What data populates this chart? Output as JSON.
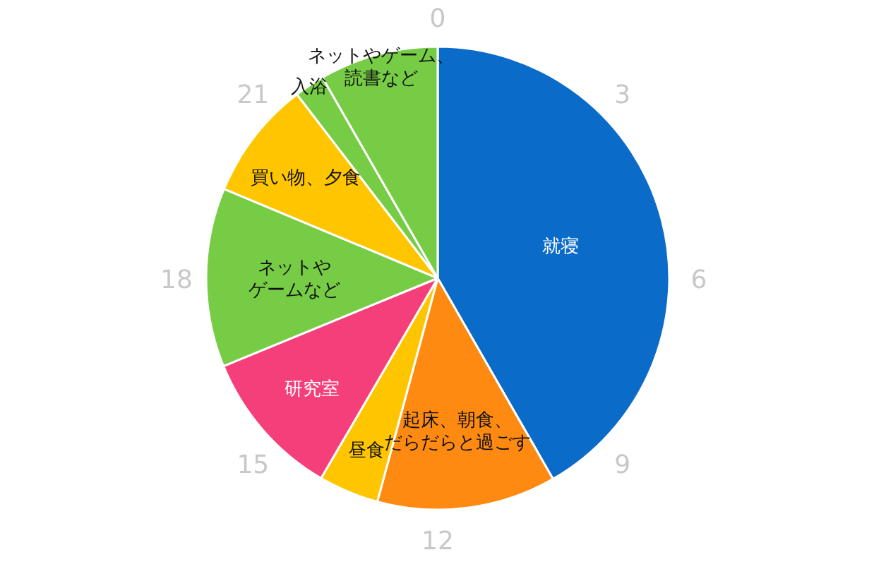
{
  "chart_data": {
    "type": "pie",
    "categories": [
      "就寝",
      "起床、朝食、だらだらと過ごす",
      "昼食",
      "研究室",
      "ネットやゲームなど",
      "買い物、夕食",
      "入浴",
      "ネットやゲーム、読書など"
    ],
    "values": [
      41.7,
      12.5,
      4.2,
      10.4,
      12.5,
      8.3,
      2.1,
      8.3
    ],
    "colors": [
      "#0b6bc8",
      "#fe8a12",
      "#ffc600",
      "#f53f7b",
      "#76cc44",
      "#ffc600",
      "#76cc44",
      "#76cc44"
    ],
    "annotations": [
      "0",
      "3",
      "6",
      "9",
      "12",
      "15",
      "18",
      "21"
    ],
    "legend": false
  }
}
